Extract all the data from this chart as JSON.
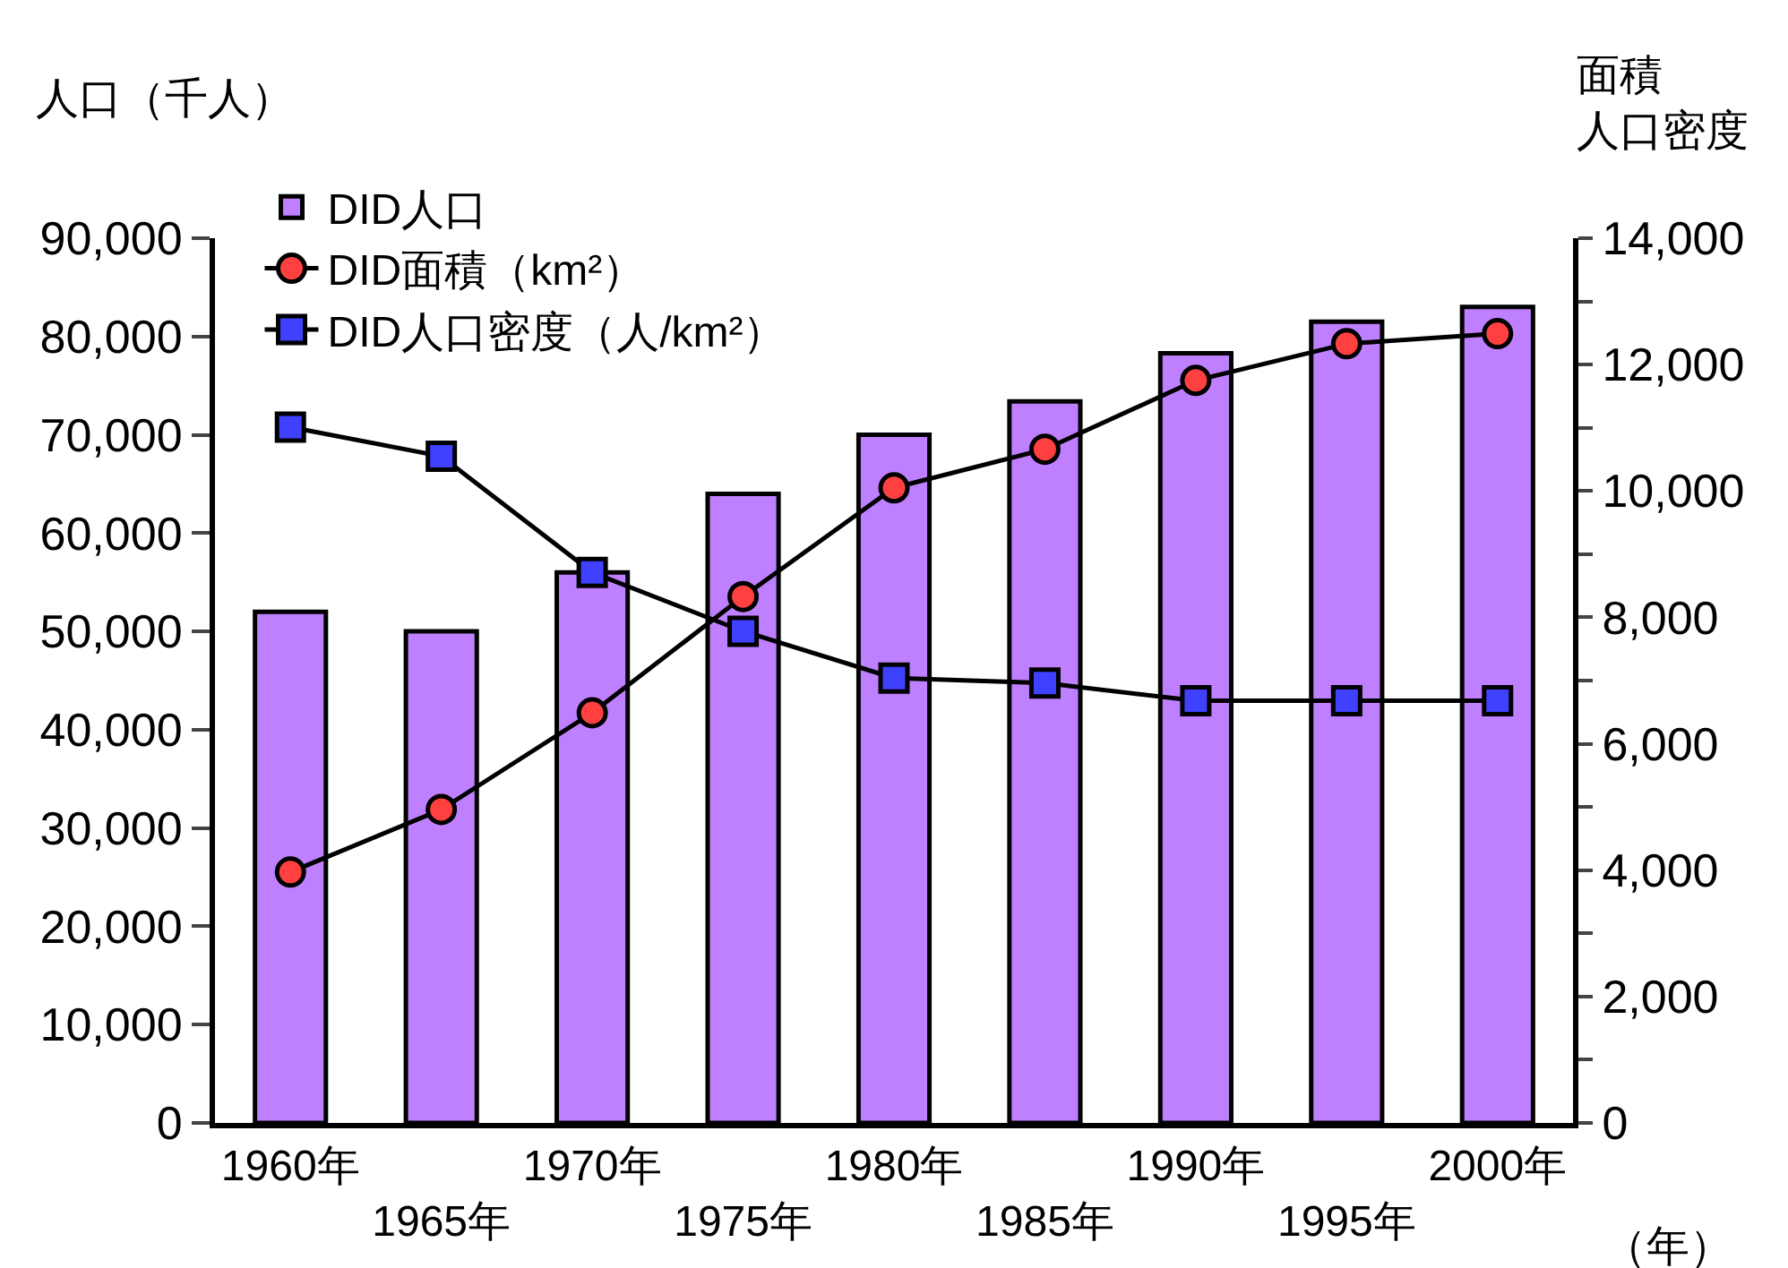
{
  "chart_data": {
    "type": "bar",
    "ylabel": "人口（千人）",
    "y2label": "面積人口密度",
    "xlabel": "（年）",
    "categories": [
      "1960年",
      "1965年",
      "1970年",
      "1975年",
      "1980年",
      "1985年",
      "1990年",
      "1995年",
      "2000年"
    ],
    "series": [
      {
        "name": "DID人口",
        "color": "#bf80ff",
        "values": [
          52000,
          50000,
          56000,
          64000,
          70000,
          73400,
          78300,
          81500,
          83000
        ]
      },
      {
        "name": "DID面積（km²）",
        "type": "line",
        "axis": "y2",
        "color": "#ff4040",
        "marker": "circle",
        "values": [
          3970,
          4960,
          6490,
          8330,
          10050,
          10660,
          11750,
          12330,
          12490
        ]
      },
      {
        "name": "DID人口密度（人/km²）",
        "type": "line",
        "axis": "y2",
        "color": "#4040ff",
        "marker": "square",
        "values": [
          11010,
          10550,
          8710,
          7780,
          7040,
          6960,
          6680,
          6680,
          6680
        ]
      }
    ],
    "ylim": [
      0,
      90000
    ],
    "yticks": [
      {
        "value": 0,
        "label": "0"
      },
      {
        "value": 10000,
        "label": "10,000"
      },
      {
        "value": 20000,
        "label": "20,000"
      },
      {
        "value": 30000,
        "label": "30,000"
      },
      {
        "value": 40000,
        "label": "40,000"
      },
      {
        "value": 50000,
        "label": "50,000"
      },
      {
        "value": 60000,
        "label": "60,000"
      },
      {
        "value": 70000,
        "label": "70,000"
      },
      {
        "value": 80000,
        "label": "80,000"
      },
      {
        "value": 90000,
        "label": "90,000"
      }
    ],
    "y2lim": [
      0,
      14000
    ],
    "y2ticks": [
      {
        "value": 0,
        "label": "0"
      },
      {
        "value": 1000,
        "label": null
      },
      {
        "value": 2000,
        "label": "2,000"
      },
      {
        "value": 3000,
        "label": null
      },
      {
        "value": 4000,
        "label": "4,000"
      },
      {
        "value": 5000,
        "label": null
      },
      {
        "value": 6000,
        "label": "6,000"
      },
      {
        "value": 7000,
        "label": null
      },
      {
        "value": 8000,
        "label": "8,000"
      },
      {
        "value": 9000,
        "label": null
      },
      {
        "value": 10000,
        "label": "10,000"
      },
      {
        "value": 11000,
        "label": null
      },
      {
        "value": 12000,
        "label": "12,000"
      },
      {
        "value": 13000,
        "label": null
      },
      {
        "value": 14000,
        "label": "14,000"
      }
    ],
    "legend": "top left",
    "line_style": "solid"
  }
}
